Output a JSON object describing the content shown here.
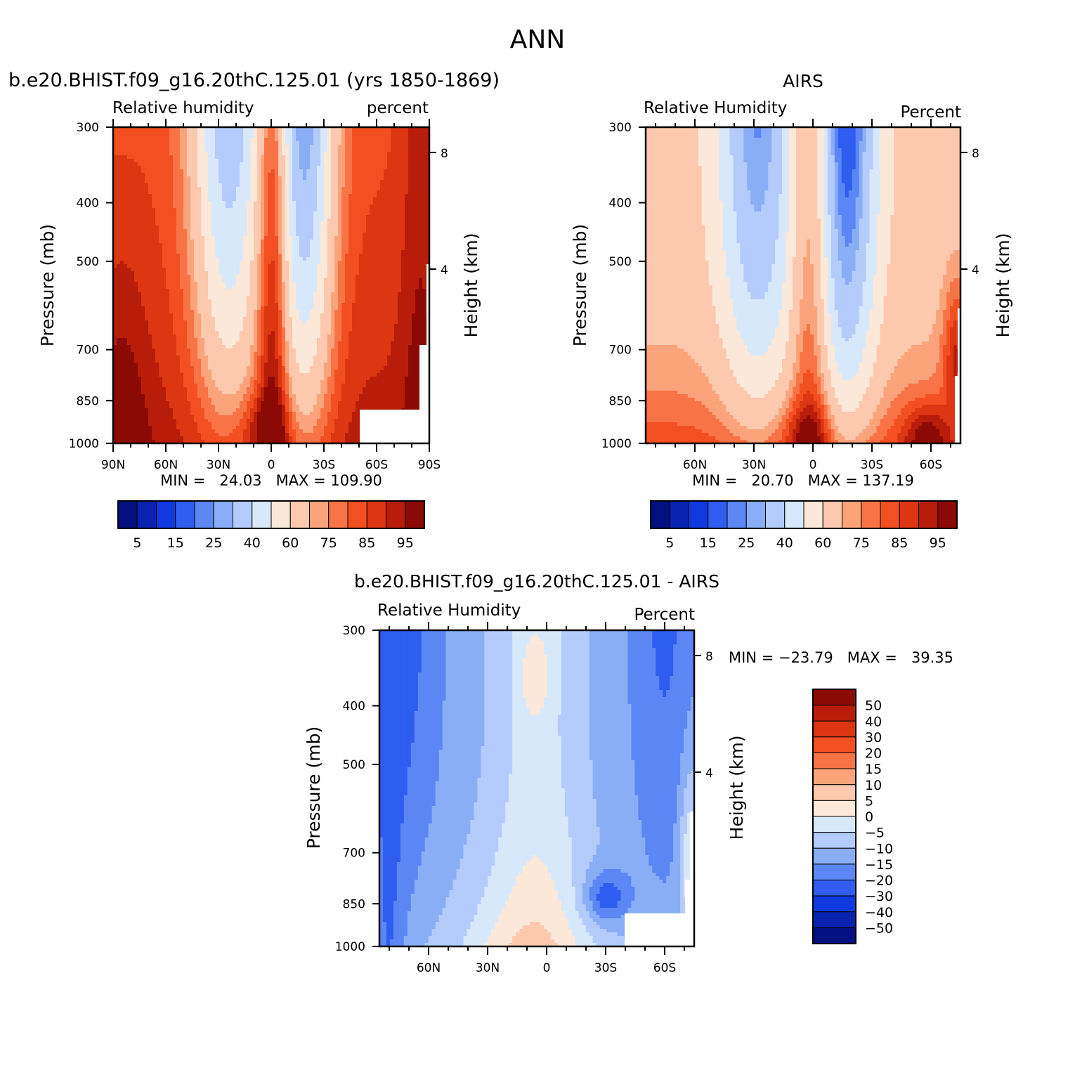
{
  "page": {
    "title": "ANN"
  },
  "colors": {
    "positive_palette": [
      "#fbe8d8",
      "#fcc8ae",
      "#fba37a",
      "#f87446",
      "#f25022",
      "#dc3612",
      "#b81d0a",
      "#8c0a05"
    ],
    "negative_palette": [
      "#d8e8fb",
      "#b4ccfb",
      "#8aaef6",
      "#5c86f3",
      "#2f5df0",
      "#0f3ae0",
      "#0a22b0",
      "#04107f"
    ],
    "masked": "#ffffff"
  },
  "chart_data": [
    {
      "type": "heatmap",
      "id": "model",
      "title": "b.e20.BHIST.f09_g16.20thC.125.01 (yrs 1850-1869)",
      "left_label": "Relative humidity",
      "right_label": "percent",
      "ylabel": "Pressure (mb)",
      "y2label": "Height (km)",
      "xlabel": "",
      "pressure_levels": [
        300,
        400,
        500,
        700,
        850,
        1000
      ],
      "height_ticks": [
        8,
        4
      ],
      "x_ticks": [
        "90N",
        "60N",
        "30N",
        "0",
        "30S",
        "60S",
        "90S"
      ],
      "stats": "MIN =   24.03   MAX = 109.90",
      "min": 24.03,
      "max": 109.9,
      "colorbar": {
        "orientation": "horizontal",
        "levels": [
          5,
          10,
          15,
          20,
          25,
          30,
          40,
          50,
          60,
          70,
          75,
          80,
          85,
          90,
          95
        ],
        "labels": [
          "5",
          "15",
          "25",
          "40",
          "60",
          "75",
          "85",
          "95"
        ],
        "colors": [
          "#04107f",
          "#0a22b0",
          "#0f3ae0",
          "#2f5df0",
          "#5c86f3",
          "#8aaef6",
          "#b4ccfb",
          "#d8e8fb",
          "#fbe8d8",
          "#fcc8ae",
          "#fba37a",
          "#f87446",
          "#f25022",
          "#dc3612",
          "#b81d0a",
          "#8c0a05"
        ]
      }
    },
    {
      "type": "heatmap",
      "id": "obs",
      "title": "AIRS",
      "left_label": "Relative Humidity",
      "right_label": "Percent",
      "ylabel": "Pressure (mb)",
      "y2label": "Height (km)",
      "xlabel": "",
      "pressure_levels": [
        300,
        400,
        500,
        700,
        850,
        1000
      ],
      "height_ticks": [
        8,
        4
      ],
      "x_ticks": [
        "60N",
        "30N",
        "0",
        "30S",
        "60S"
      ],
      "stats": "MIN =   20.70   MAX = 137.19",
      "min": 20.7,
      "max": 137.19,
      "colorbar": {
        "orientation": "horizontal",
        "levels": [
          5,
          10,
          15,
          20,
          25,
          30,
          40,
          50,
          60,
          70,
          75,
          80,
          85,
          90,
          95
        ],
        "labels": [
          "5",
          "15",
          "25",
          "40",
          "60",
          "75",
          "85",
          "95"
        ],
        "colors": [
          "#04107f",
          "#0a22b0",
          "#0f3ae0",
          "#2f5df0",
          "#5c86f3",
          "#8aaef6",
          "#b4ccfb",
          "#d8e8fb",
          "#fbe8d8",
          "#fcc8ae",
          "#fba37a",
          "#f87446",
          "#f25022",
          "#dc3612",
          "#b81d0a",
          "#8c0a05"
        ]
      }
    },
    {
      "type": "heatmap",
      "id": "diff",
      "title": "b.e20.BHIST.f09_g16.20thC.125.01 - AIRS",
      "left_label": "Relative Humidity",
      "right_label": "Percent",
      "ylabel": "Pressure (mb)",
      "y2label": "Height (km)",
      "xlabel": "",
      "pressure_levels": [
        300,
        400,
        500,
        700,
        850,
        1000
      ],
      "height_ticks": [
        8,
        4
      ],
      "x_ticks": [
        "60N",
        "30N",
        "0",
        "30S",
        "60S"
      ],
      "stats": "MIN = -23.79   MAX =   39.35",
      "min": -23.79,
      "max": 39.35,
      "colorbar": {
        "orientation": "vertical",
        "levels": [
          -50,
          -40,
          -30,
          -20,
          -15,
          -10,
          -5,
          0,
          5,
          10,
          15,
          20,
          30,
          40,
          50
        ],
        "labels": [
          "50",
          "40",
          "30",
          "20",
          "15",
          "10",
          "5",
          "0",
          "-5",
          "-10",
          "-15",
          "-20",
          "-30",
          "-40",
          "-50"
        ],
        "colors": [
          "#8c0a05",
          "#b81d0a",
          "#dc3612",
          "#f25022",
          "#f87446",
          "#fba37a",
          "#fcc8ae",
          "#fbe8d8",
          "#d8e8fb",
          "#b4ccfb",
          "#8aaef6",
          "#5c86f3",
          "#2f5df0",
          "#0f3ae0",
          "#0a22b0",
          "#04107f"
        ]
      }
    }
  ]
}
